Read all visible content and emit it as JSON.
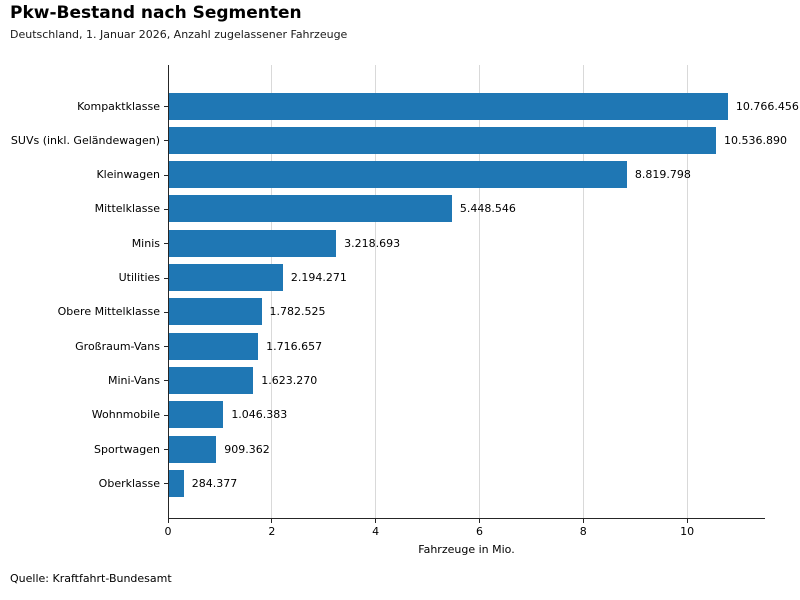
{
  "chart_data": {
    "type": "bar",
    "orientation": "horizontal",
    "title": "Pkw-Bestand nach Segmenten",
    "subtitle": "Deutschland, 1. Januar 2026, Anzahl zugelassener Fahrzeuge",
    "xlabel": "Fahrzeuge in Mio.",
    "source": "Quelle: Kraftfahrt-Bundesamt",
    "categories": [
      "Kompaktklasse",
      "SUVs (inkl. Geländewagen)",
      "Kleinwagen",
      "Mittelklasse",
      "Minis",
      "Utilities",
      "Obere Mittelklasse",
      "Großraum-Vans",
      "Mini-Vans",
      "Wohnmobile",
      "Sportwagen",
      "Oberklasse"
    ],
    "values": [
      10766456,
      10536890,
      8819798,
      5448546,
      3218693,
      2194271,
      1782525,
      1716657,
      1623270,
      1046383,
      909362,
      284377
    ],
    "value_labels": [
      "10.766.456",
      "10.536.890",
      "8.819.798",
      "5.448.546",
      "3.218.693",
      "2.194.271",
      "1.782.525",
      "1.716.657",
      "1.623.270",
      "1.046.383",
      "909.362",
      "284.377"
    ],
    "xticks": [
      0,
      2,
      4,
      6,
      8,
      10
    ],
    "xlim": [
      0,
      11.5
    ],
    "grid": "vertical",
    "legend": false,
    "bar_color": "#1f77b4",
    "gridline_color": "#d9d9d9",
    "axis_color": "#262626",
    "text_color": "#000000"
  }
}
